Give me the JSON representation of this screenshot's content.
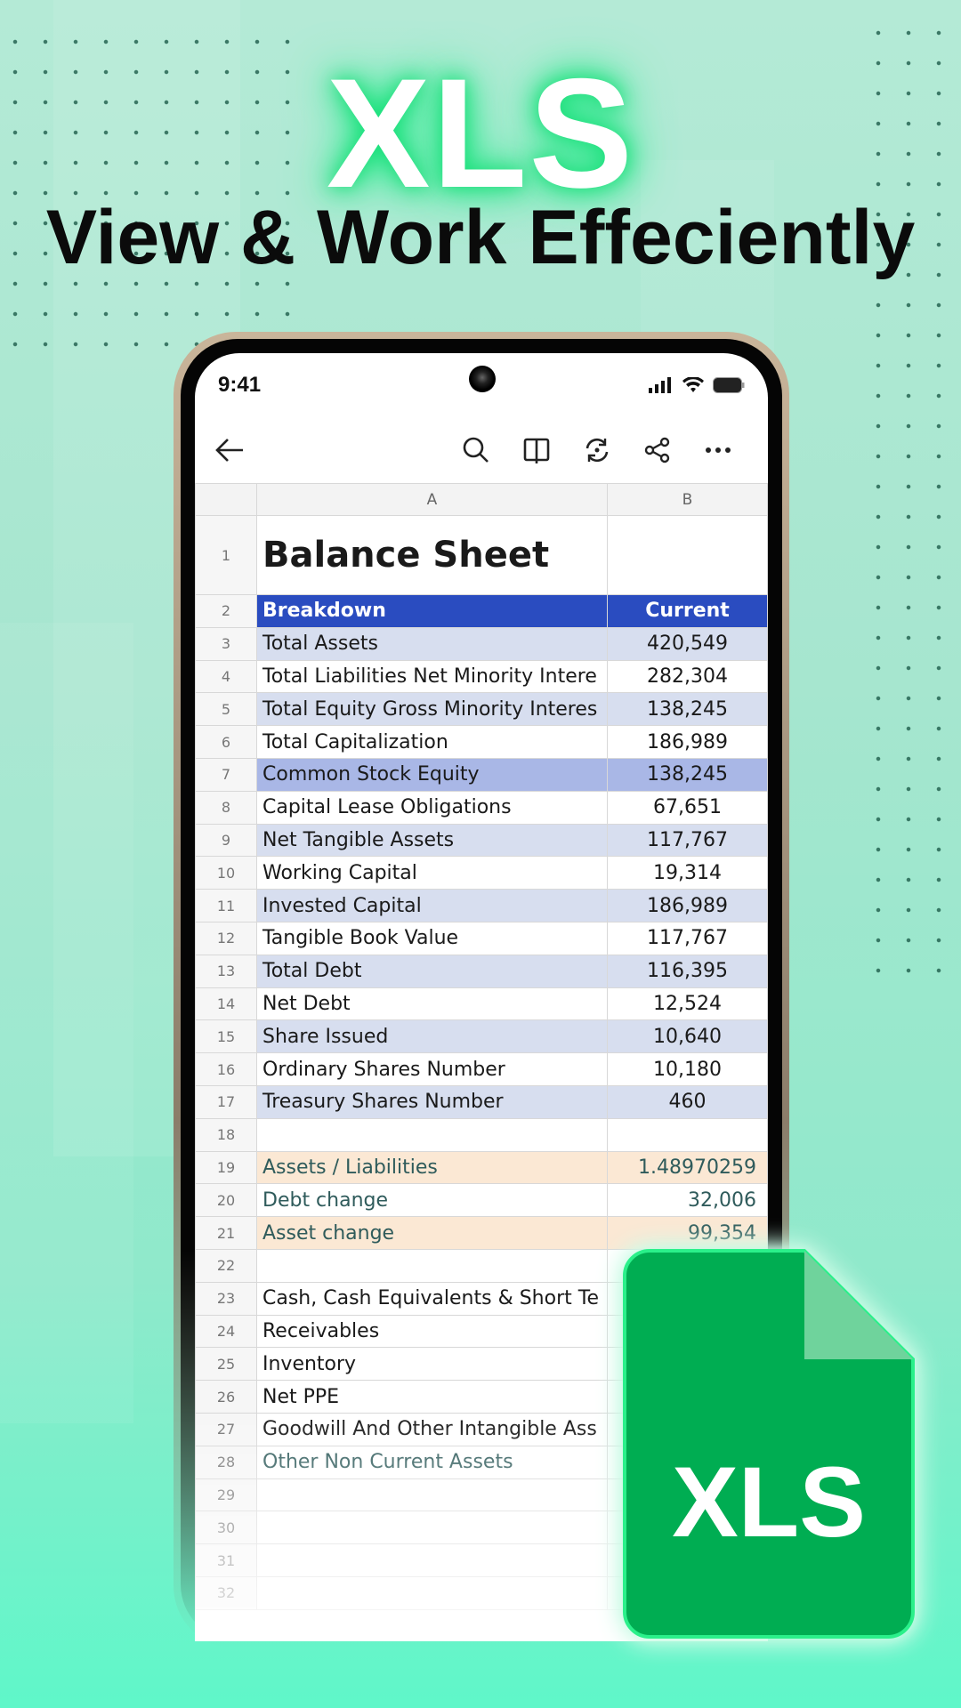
{
  "hero": {
    "title": "XLS",
    "tagline": "View & Work Effeciently"
  },
  "status_bar": {
    "time": "9:41"
  },
  "toolbar": {
    "icons": [
      "back-arrow-icon",
      "search-icon",
      "book-view-icon",
      "rotate-icon",
      "share-icon",
      "more-icon"
    ]
  },
  "sheet": {
    "columns": [
      "A",
      "B"
    ],
    "rows": [
      {
        "n": "1",
        "a": "Balance Sheet",
        "b": ""
      },
      {
        "n": "2",
        "a": "Breakdown",
        "b": "Current"
      },
      {
        "n": "3",
        "a": "Total Assets",
        "b": "420,549"
      },
      {
        "n": "4",
        "a": "Total Liabilities Net Minority Intere",
        "b": "282,304"
      },
      {
        "n": "5",
        "a": "Total Equity Gross Minority Interes",
        "b": "138,245"
      },
      {
        "n": "6",
        "a": "Total Capitalization",
        "b": "186,989"
      },
      {
        "n": "7",
        "a": "Common Stock Equity",
        "b": "138,245"
      },
      {
        "n": "8",
        "a": "Capital Lease Obligations",
        "b": "67,651"
      },
      {
        "n": "9",
        "a": "Net Tangible Assets",
        "b": "117,767"
      },
      {
        "n": "10",
        "a": "Working Capital",
        "b": "19,314"
      },
      {
        "n": "11",
        "a": "Invested Capital",
        "b": "186,989"
      },
      {
        "n": "12",
        "a": "Tangible Book Value",
        "b": "117,767"
      },
      {
        "n": "13",
        "a": "Total Debt",
        "b": "116,395"
      },
      {
        "n": "14",
        "a": "Net Debt",
        "b": "12,524"
      },
      {
        "n": "15",
        "a": "Share Issued",
        "b": "10,640"
      },
      {
        "n": "16",
        "a": "Ordinary Shares Number",
        "b": "10,180"
      },
      {
        "n": "17",
        "a": "Treasury Shares Number",
        "b": "460"
      },
      {
        "n": "18",
        "a": "",
        "b": ""
      },
      {
        "n": "19",
        "a": "Assets / Liabilities",
        "b": "1.48970259"
      },
      {
        "n": "20",
        "a": "Debt change",
        "b": "32,006"
      },
      {
        "n": "21",
        "a": "Asset change",
        "b": "99,354"
      },
      {
        "n": "22",
        "a": "",
        "b": ""
      },
      {
        "n": "23",
        "a": "Cash, Cash Equivalents & Short Te",
        "b": ""
      },
      {
        "n": "24",
        "a": "Receivables",
        "b": ""
      },
      {
        "n": "25",
        "a": "Inventory",
        "b": ""
      },
      {
        "n": "26",
        "a": "Net PPE",
        "b": ""
      },
      {
        "n": "27",
        "a": "Goodwill And Other Intangible Ass",
        "b": ""
      },
      {
        "n": "28",
        "a": "Other Non Current Assets",
        "b": ""
      },
      {
        "n": "29",
        "a": "",
        "b": ""
      },
      {
        "n": "30",
        "a": "",
        "b": ""
      },
      {
        "n": "31",
        "a": "",
        "b": ""
      },
      {
        "n": "32",
        "a": "",
        "b": ""
      }
    ]
  },
  "file_badge": {
    "label": "XLS",
    "color": "#00ad52"
  },
  "colors": {
    "header_blue": "#2a4cc0",
    "row_blue": "#d7deef",
    "row_orange": "#fbe8d4"
  }
}
